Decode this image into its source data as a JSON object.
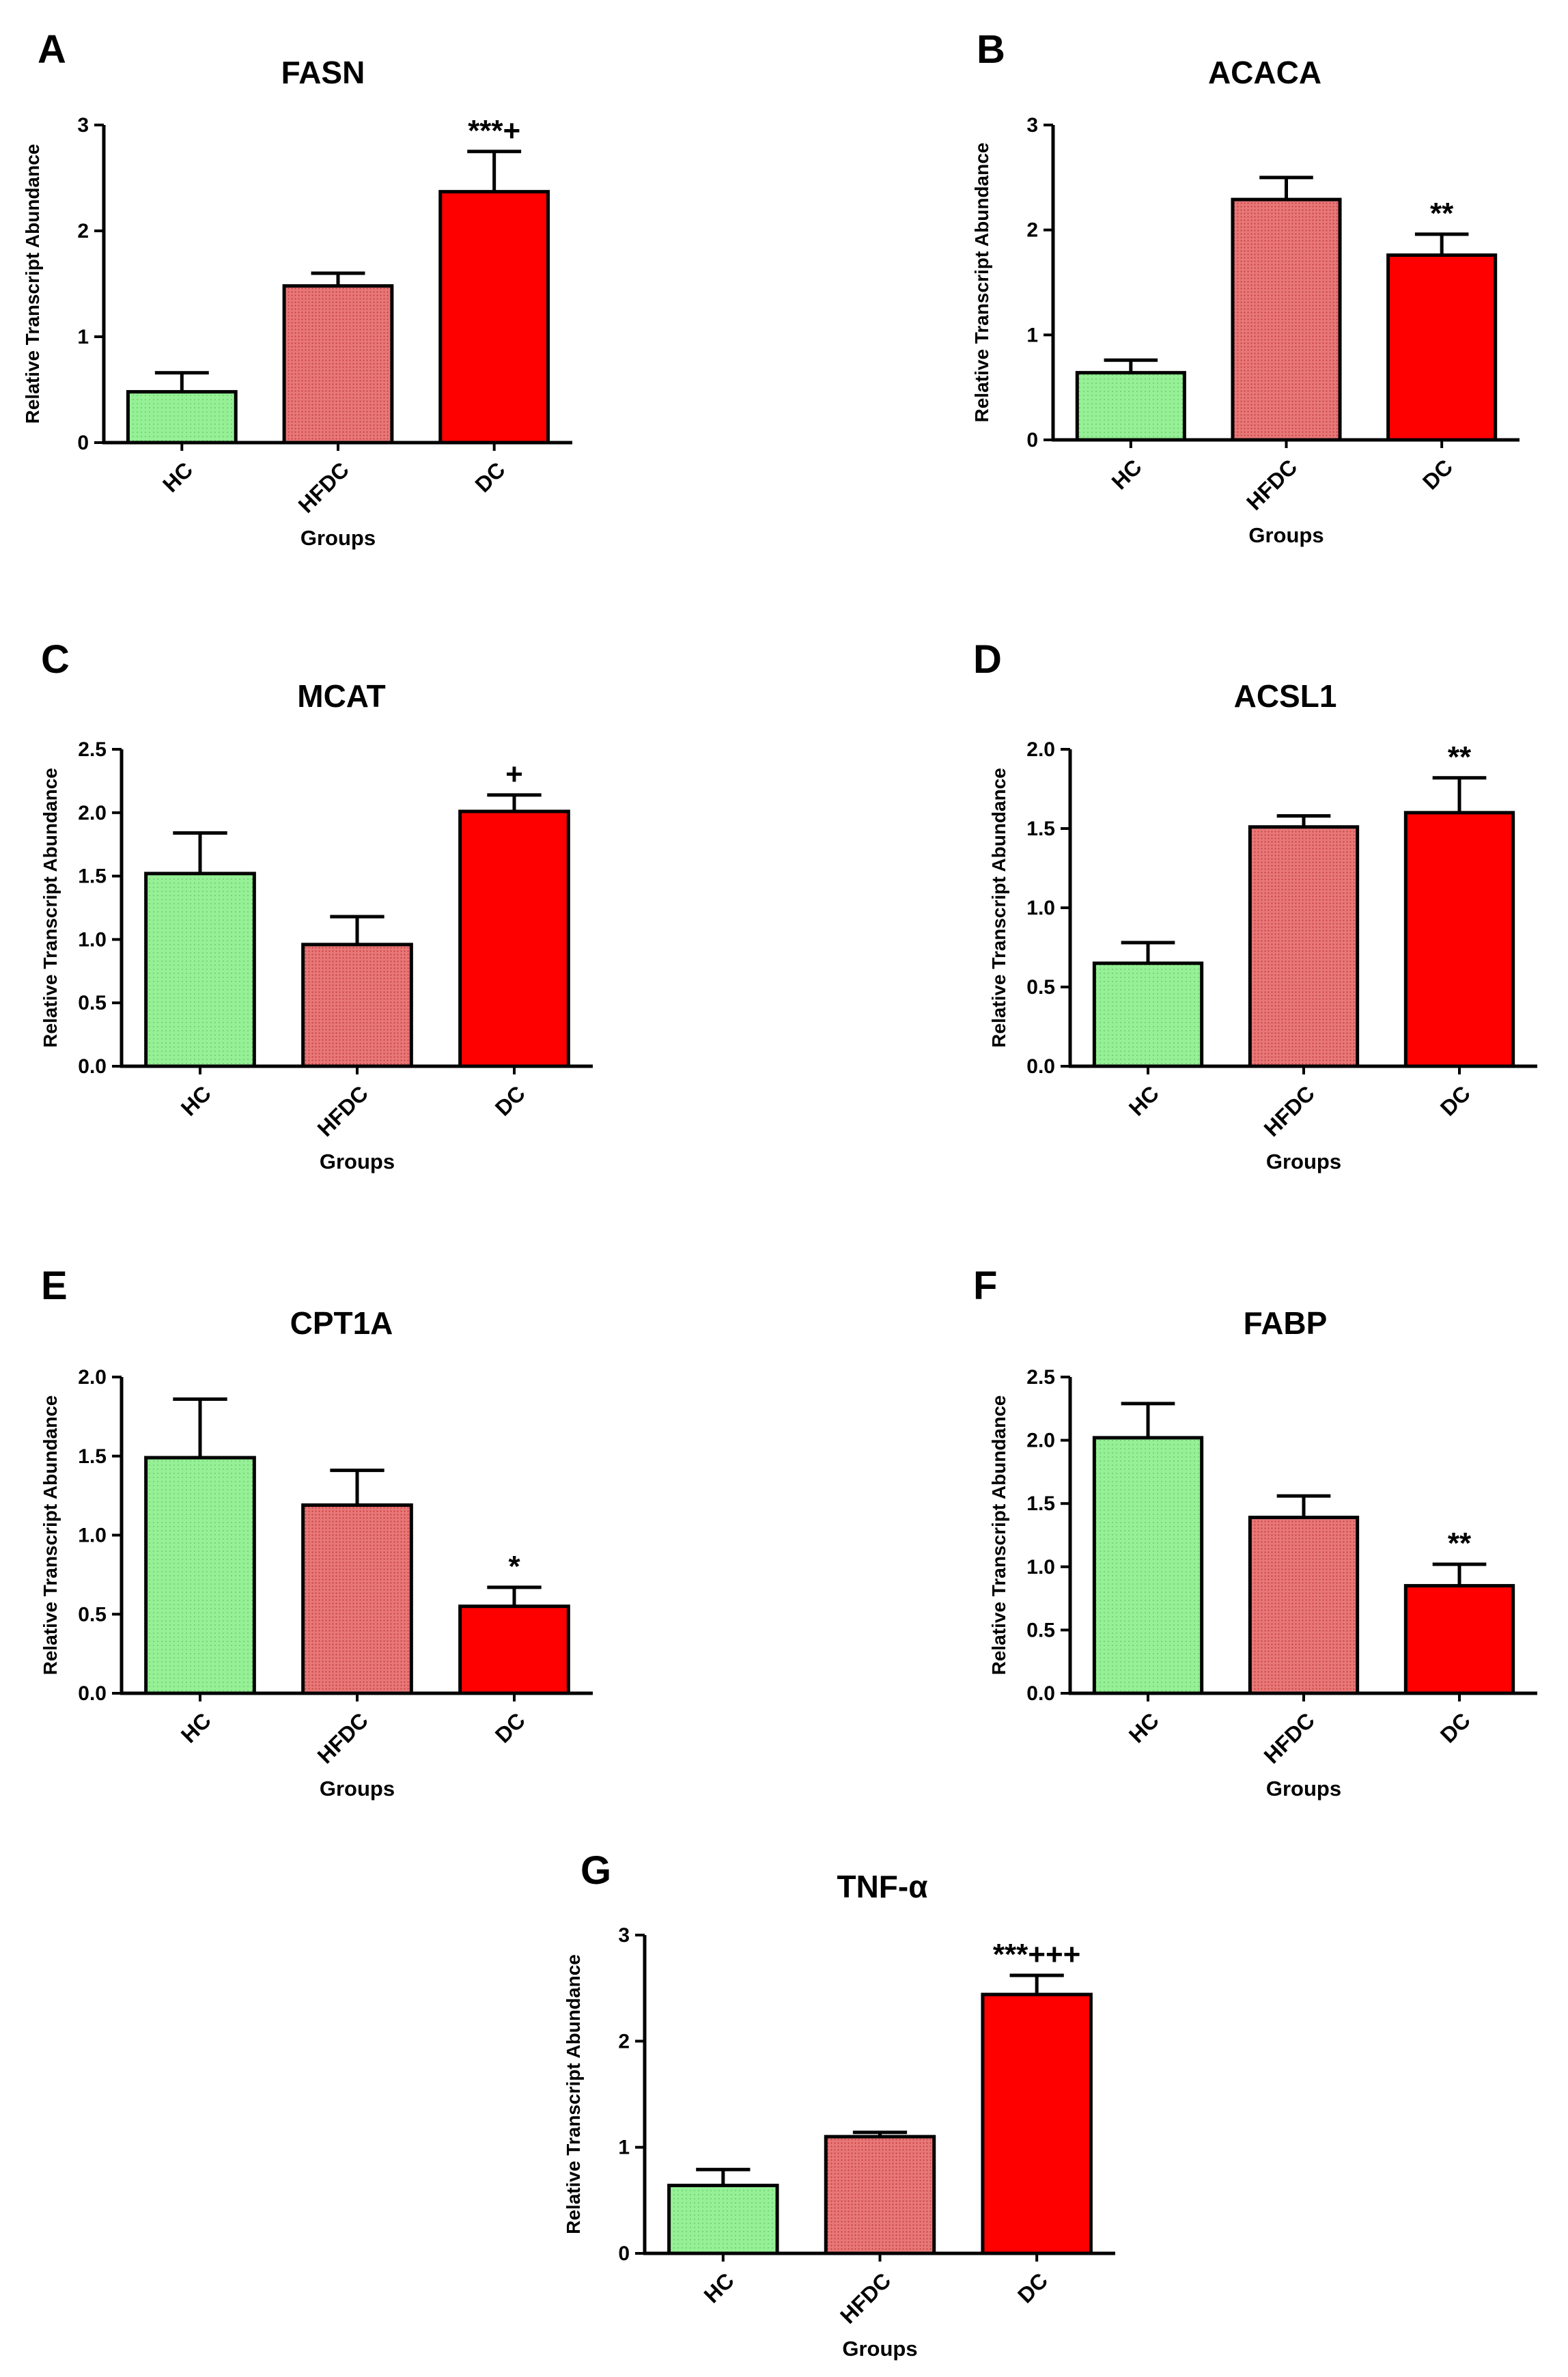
{
  "figure": {
    "colors": {
      "HC": "#90EE90",
      "HFDC": "#E46A6A",
      "DC": "#FF0000",
      "axis": "#000000"
    }
  },
  "chart_data": [
    {
      "panel": "A",
      "type": "bar",
      "title": "FASN",
      "categories": [
        "HC",
        "HFDC",
        "DC"
      ],
      "values": [
        0.48,
        1.48,
        2.37
      ],
      "errors": [
        0.18,
        0.12,
        0.38
      ],
      "annotations": [
        "",
        "",
        "***+"
      ],
      "xlabel": "Groups",
      "ylabel": "Relative  Transcript Abundance",
      "ylim": [
        0,
        3
      ],
      "yticks": [
        "0",
        "1",
        "2",
        "3"
      ],
      "grid": false
    },
    {
      "panel": "B",
      "type": "bar",
      "title": "ACACA",
      "categories": [
        "HC",
        "HFDC",
        "DC"
      ],
      "values": [
        0.64,
        2.29,
        1.76
      ],
      "errors": [
        0.12,
        0.21,
        0.2
      ],
      "annotations": [
        "",
        "",
        "**"
      ],
      "xlabel": "Groups",
      "ylabel": "Relative  Transcript Abundance",
      "ylim": [
        0,
        3
      ],
      "yticks": [
        "0",
        "1",
        "2",
        "3"
      ],
      "grid": false
    },
    {
      "panel": "C",
      "type": "bar",
      "title": "MCAT",
      "categories": [
        "HC",
        "HFDC",
        "DC"
      ],
      "values": [
        1.52,
        0.96,
        2.01
      ],
      "errors": [
        0.32,
        0.22,
        0.13
      ],
      "annotations": [
        "",
        "",
        "+"
      ],
      "xlabel": "Groups",
      "ylabel": "Relative  Transcript Abundance",
      "ylim": [
        0,
        2.5
      ],
      "yticks": [
        "0.0",
        "0.5",
        "1.0",
        "1.5",
        "2.0",
        "2.5"
      ],
      "grid": false
    },
    {
      "panel": "D",
      "type": "bar",
      "title": "ACSL1",
      "categories": [
        "HC",
        "HFDC",
        "DC"
      ],
      "values": [
        0.65,
        1.51,
        1.6
      ],
      "errors": [
        0.13,
        0.07,
        0.22
      ],
      "annotations": [
        "",
        "",
        "**"
      ],
      "xlabel": "Groups",
      "ylabel": "Relative  Transcript Abundance",
      "ylim": [
        0,
        2.0
      ],
      "yticks": [
        "0.0",
        "0.5",
        "1.0",
        "1.5",
        "2.0"
      ],
      "grid": false
    },
    {
      "panel": "E",
      "type": "bar",
      "title": "CPT1A",
      "categories": [
        "HC",
        "HFDC",
        "DC"
      ],
      "values": [
        1.49,
        1.19,
        0.55
      ],
      "errors": [
        0.37,
        0.22,
        0.12
      ],
      "annotations": [
        "",
        "",
        "*"
      ],
      "xlabel": "Groups",
      "ylabel": "Relative  Transcript Abundance",
      "ylim": [
        0,
        2.0
      ],
      "yticks": [
        "0.0",
        "0.5",
        "1.0",
        "1.5",
        "2.0"
      ],
      "grid": false
    },
    {
      "panel": "F",
      "type": "bar",
      "title": "FABP",
      "categories": [
        "HC",
        "HFDC",
        "DC"
      ],
      "values": [
        2.02,
        1.39,
        0.85
      ],
      "errors": [
        0.27,
        0.17,
        0.17
      ],
      "annotations": [
        "",
        "",
        "**"
      ],
      "xlabel": "Groups",
      "ylabel": "Relative  Transcript Abundance",
      "ylim": [
        0,
        2.5
      ],
      "yticks": [
        "0.0",
        "0.5",
        "1.0",
        "1.5",
        "2.0",
        "2.5"
      ],
      "grid": false
    },
    {
      "panel": "G",
      "type": "bar",
      "title": "TNF-α",
      "categories": [
        "HC",
        "HFDC",
        "DC"
      ],
      "values": [
        0.64,
        1.1,
        2.44
      ],
      "errors": [
        0.15,
        0.04,
        0.18
      ],
      "annotations": [
        "",
        "",
        "***+++"
      ],
      "xlabel": "Groups",
      "ylabel": "Relative  Transcript Abundance",
      "ylim": [
        0,
        3
      ],
      "yticks": [
        "0",
        "1",
        "2",
        "3"
      ],
      "grid": false
    }
  ]
}
